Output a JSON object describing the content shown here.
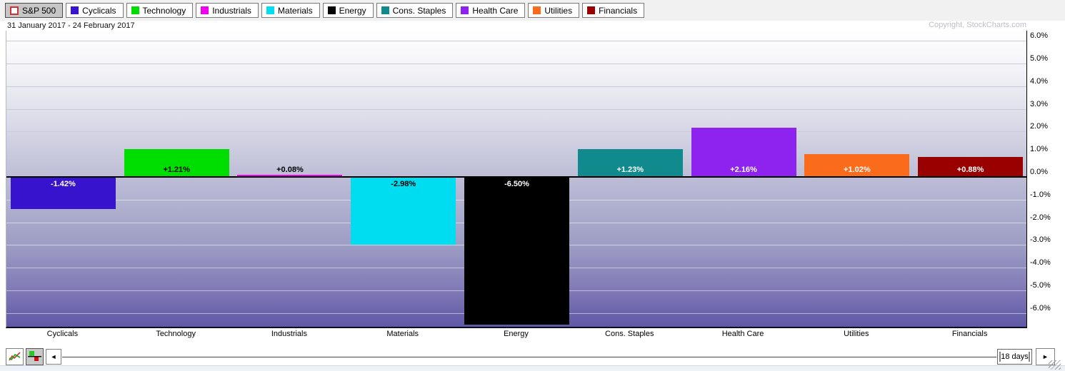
{
  "header": {
    "date_range": "31 January 2017 - 24 February 2017",
    "copyright": "Copyright, StockCharts.com"
  },
  "legend": {
    "sp500_label": "S&P 500",
    "sp500_swatch_border": "#CC3333",
    "sectors": [
      {
        "label": "Cyclicals",
        "color": "#3813CE"
      },
      {
        "label": "Technology",
        "color": "#00DD00"
      },
      {
        "label": "Industrials",
        "color": "#EE00EE"
      },
      {
        "label": "Materials",
        "color": "#00DCF0"
      },
      {
        "label": "Energy",
        "color": "#000000"
      },
      {
        "label": "Cons. Staples",
        "color": "#118A8E"
      },
      {
        "label": "Health Care",
        "color": "#8E22EE"
      },
      {
        "label": "Utilities",
        "color": "#FB6B1C"
      },
      {
        "label": "Financials",
        "color": "#990000"
      }
    ]
  },
  "chart_data": {
    "type": "bar",
    "title": "S&P 500 sector performance",
    "period": "31 January 2017 - 24 February 2017",
    "categories": [
      "Cyclicals",
      "Technology",
      "Industrials",
      "Materials",
      "Energy",
      "Cons. Staples",
      "Health Care",
      "Utilities",
      "Financials"
    ],
    "values": [
      -1.42,
      1.21,
      0.08,
      -2.98,
      -6.5,
      1.23,
      2.16,
      1.02,
      0.88
    ],
    "value_labels": [
      "-1.42%",
      "+1.21%",
      "+0.08%",
      "-2.98%",
      "-6.50%",
      "+1.23%",
      "+2.16%",
      "+1.02%",
      "+0.88%"
    ],
    "bar_colors": [
      "#3813CE",
      "#00DD00",
      "#EE00EE",
      "#00DCF0",
      "#000000",
      "#118A8E",
      "#8E22EE",
      "#FB6B1C",
      "#990000"
    ],
    "value_label_colors": [
      "#FFFFFF",
      "#000000",
      "#000000",
      "#000000",
      "#FFFFFF",
      "#FFFFFF",
      "#FFFFFF",
      "#FFFFFF",
      "#FFFFFF"
    ],
    "xlabel": "",
    "ylabel": "",
    "y_ticks": [
      "6.0%",
      "5.0%",
      "4.0%",
      "3.0%",
      "2.0%",
      "1.0%",
      "0.0%",
      "-1.0%",
      "-2.0%",
      "-3.0%",
      "-4.0%",
      "-5.0%",
      "-6.0%"
    ],
    "y_tick_values": [
      6,
      5,
      4,
      3,
      2,
      1,
      0,
      -1,
      -2,
      -3,
      -4,
      -5,
      -6
    ],
    "ylim": [
      -6.6,
      6.45
    ],
    "grid": true,
    "legend_position": "top"
  },
  "toolbar": {
    "slider_label": "18 days",
    "left_arrow": "◄",
    "right_arrow": "►"
  }
}
